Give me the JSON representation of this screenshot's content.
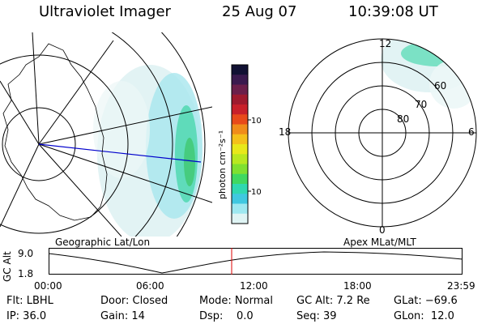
{
  "header": {
    "instrument": "Ultraviolet Imager",
    "date": "25 Aug 07",
    "time": "10:39:08 UT"
  },
  "colorbar": {
    "unit_label": "photon cm⁻²s⁻¹",
    "ticks": [
      "100",
      "10"
    ],
    "colors": [
      "#111133",
      "#3a1a4e",
      "#6b1f4a",
      "#9e1a2e",
      "#c8202a",
      "#e84a1a",
      "#f08c1a",
      "#f4c01a",
      "#e8e81a",
      "#b8e820",
      "#7fe030",
      "#40d860",
      "#30d8b0",
      "#40c8e0",
      "#9ee8f0",
      "#dff4f4"
    ]
  },
  "left_map": {
    "caption": "Geographic Lat/Lon"
  },
  "right_map": {
    "caption": "Apex MLat/MLT",
    "mlt_labels": {
      "top": "12",
      "right": "6",
      "bottom": "0",
      "left": "18"
    },
    "lat_labels": [
      "80",
      "70",
      "60"
    ]
  },
  "altitude_plot": {
    "ylabel": "GC Alt",
    "yticks": [
      "9.0",
      "1.8"
    ],
    "xticks": [
      "00:00",
      "06:00",
      "12:00",
      "18:00",
      "23:59"
    ],
    "marker_color": "#dd0000"
  },
  "status": {
    "filter": "Flt: LBHL",
    "door": "Door: Closed",
    "mode": "Mode: Normal",
    "gc_alt": "GC Alt: 7.2 Re",
    "glat": "GLat: −69.6",
    "ip": "IP: 36.0",
    "gain": "Gain: 14",
    "dsp": "Dsp:    0.0",
    "seq": "Seq: 39",
    "glon": "GLon:  12.0"
  }
}
